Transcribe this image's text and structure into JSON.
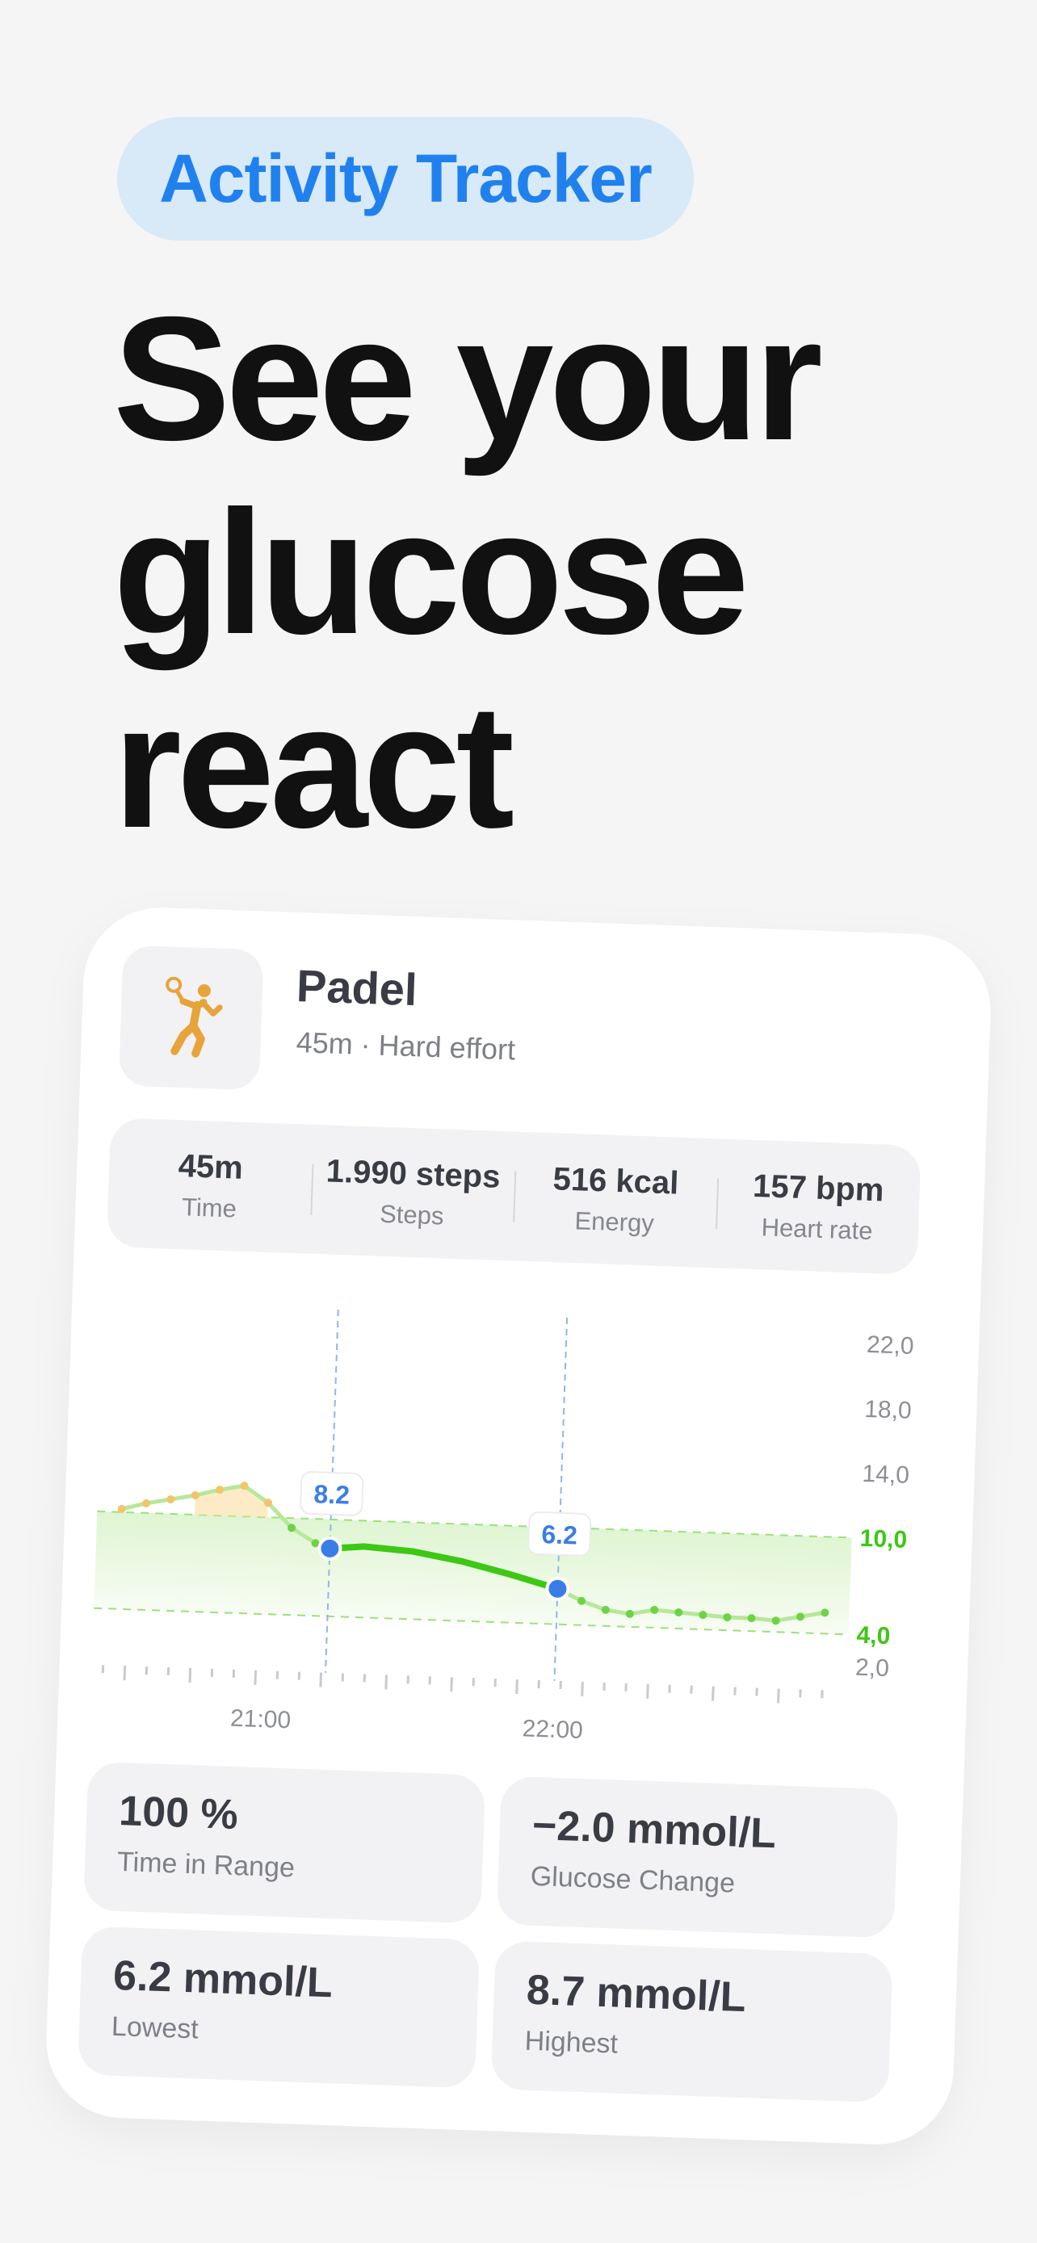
{
  "badge": {
    "label": "Activity Tracker"
  },
  "headline": {
    "lines": [
      "See your",
      "glucose",
      "react"
    ]
  },
  "activity": {
    "icon": "padel-player-icon",
    "title": "Padel",
    "subtitle": "45m · Hard effort"
  },
  "stats": [
    {
      "value": "45m",
      "label": "Time"
    },
    {
      "value": "1.990 steps",
      "label": "Steps"
    },
    {
      "value": "516 kcal",
      "label": "Energy"
    },
    {
      "value": "157 bpm",
      "label": "Heart rate"
    }
  ],
  "metrics": [
    {
      "value": "100 %",
      "label": "Time in Range"
    },
    {
      "value": "−2.0 mmol/L",
      "label": "Glucose Change"
    },
    {
      "value": "6.2 mmol/L",
      "label": "Lowest"
    },
    {
      "value": "8.7 mmol/L",
      "label": "Highest"
    }
  ],
  "colors": {
    "accent_blue": "#2081ee",
    "badge_bg": "#d8e9f7",
    "glucose_green": "#3ec714",
    "range_fill": "#e9f9df",
    "above_range": "#f3c46a",
    "marker_blue": "#3a7de8"
  },
  "chart_data": {
    "type": "line",
    "y_ticks": [
      "22,0",
      "18,0",
      "14,0",
      "10,0",
      "4,0",
      "2,0"
    ],
    "x_ticks": [
      "21:00",
      "22:00"
    ],
    "ylim": [
      2,
      22
    ],
    "target_range": [
      4,
      10
    ],
    "markers": [
      {
        "label": "8.2",
        "x": "21:13",
        "y": 8.2
      },
      {
        "label": "6.2",
        "x": "22:00",
        "y": 6.2
      }
    ],
    "series": [
      {
        "values": [
          {
            "x": "20:30",
            "y": 10.2
          },
          {
            "x": "20:35",
            "y": 10.6
          },
          {
            "x": "20:40",
            "y": 10.9
          },
          {
            "x": "20:45",
            "y": 11.2
          },
          {
            "x": "20:50",
            "y": 11.6
          },
          {
            "x": "20:55",
            "y": 11.9
          },
          {
            "x": "21:00",
            "y": 10.9
          },
          {
            "x": "21:05",
            "y": 9.4
          },
          {
            "x": "21:10",
            "y": 8.5
          },
          {
            "x": "21:13",
            "y": 8.2
          },
          {
            "x": "21:20",
            "y": 8.4
          },
          {
            "x": "21:30",
            "y": 8.2
          },
          {
            "x": "21:40",
            "y": 7.7
          },
          {
            "x": "21:50",
            "y": 7.0
          },
          {
            "x": "22:00",
            "y": 6.2
          },
          {
            "x": "22:05",
            "y": 5.5
          },
          {
            "x": "22:10",
            "y": 5.0
          },
          {
            "x": "22:15",
            "y": 4.8
          },
          {
            "x": "22:20",
            "y": 5.1
          },
          {
            "x": "22:25",
            "y": 5.0
          },
          {
            "x": "22:30",
            "y": 4.9
          },
          {
            "x": "22:35",
            "y": 4.8
          },
          {
            "x": "22:40",
            "y": 4.8
          },
          {
            "x": "22:45",
            "y": 4.7
          },
          {
            "x": "22:50",
            "y": 5.0
          },
          {
            "x": "22:55",
            "y": 5.3
          }
        ]
      }
    ]
  }
}
